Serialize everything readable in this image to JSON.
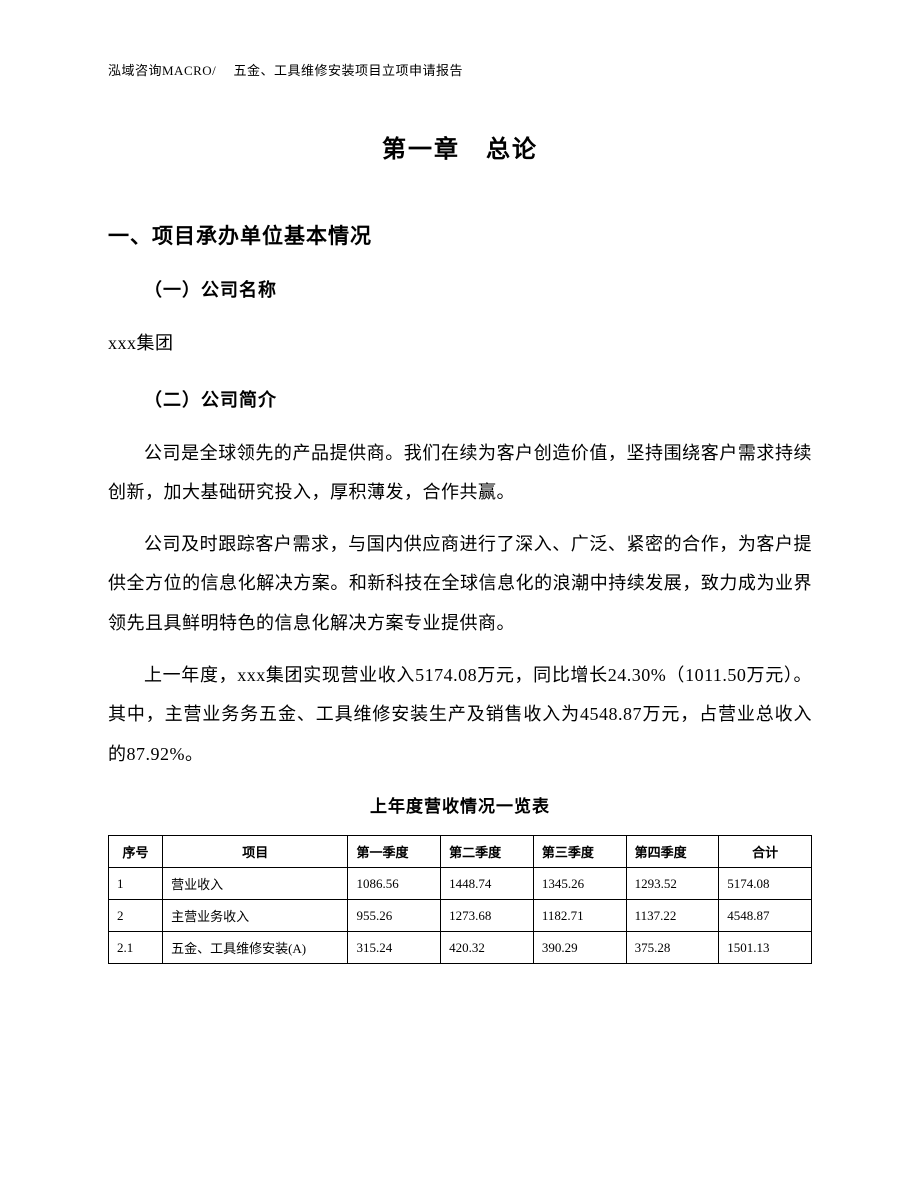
{
  "header": "泓域咨询MACRO/　 五金、工具维修安装项目立项申请报告",
  "chapter_title": "第一章　总论",
  "section1": {
    "title": "一、项目承办单位基本情况",
    "sub1_title": "（一）公司名称",
    "company_name": "xxx集团",
    "sub2_title": "（二）公司简介",
    "p1": "公司是全球领先的产品提供商。我们在续为客户创造价值，坚持围绕客户需求持续创新，加大基础研究投入，厚积薄发，合作共赢。",
    "p2": "公司及时跟踪客户需求，与国内供应商进行了深入、广泛、紧密的合作，为客户提供全方位的信息化解决方案。和新科技在全球信息化的浪潮中持续发展，致力成为业界领先且具鲜明特色的信息化解决方案专业提供商。",
    "p3": "上一年度，xxx集团实现营业收入5174.08万元，同比增长24.30%（1011.50万元）。其中，主营业务务五金、工具维修安装生产及销售收入为4548.87万元，占营业总收入的87.92%。"
  },
  "table": {
    "title": "上年度营收情况一览表",
    "columns": [
      "序号",
      "项目",
      "第一季度",
      "第二季度",
      "第三季度",
      "第四季度",
      "合计"
    ],
    "rows": [
      [
        "1",
        "营业收入",
        "1086.56",
        "1448.74",
        "1345.26",
        "1293.52",
        "5174.08"
      ],
      [
        "2",
        "主营业务收入",
        "955.26",
        "1273.68",
        "1182.71",
        "1137.22",
        "4548.87"
      ],
      [
        "2.1",
        "五金、工具维修安装(A)",
        "315.24",
        "420.32",
        "390.29",
        "375.28",
        "1501.13"
      ]
    ]
  }
}
